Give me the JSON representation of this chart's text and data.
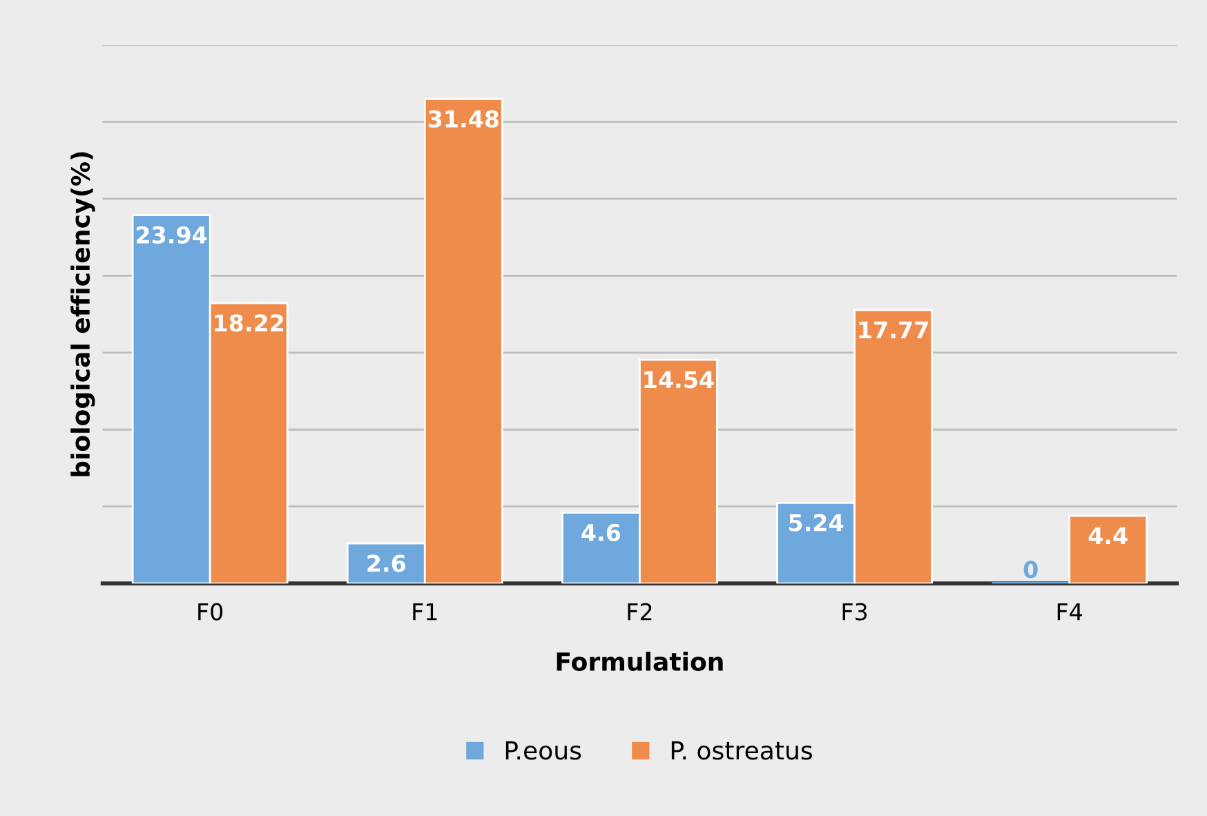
{
  "chart_data": {
    "type": "bar",
    "xlabel": "Formulation",
    "ylabel": "biological efficiency(%)",
    "categories": [
      "F0",
      "F1",
      "F2",
      "F3",
      "F4"
    ],
    "series": [
      {
        "name": "P.eous",
        "color": "#6fa8dc",
        "values": [
          23.94,
          2.6,
          4.6,
          5.24,
          0
        ]
      },
      {
        "name": "P. ostreatus",
        "color": "#ef8c4c",
        "values": [
          18.22,
          31.48,
          14.54,
          17.77,
          4.4
        ]
      }
    ],
    "ylim": [
      0,
      35
    ],
    "yticks": [
      {
        "value": 0,
        "label": null
      },
      {
        "value": 5,
        "label": null
      },
      {
        "value": 10,
        "label": null
      },
      {
        "value": 15,
        "label": null
      },
      {
        "value": 20,
        "label": null
      },
      {
        "value": 25,
        "label": null
      },
      {
        "value": 30,
        "label": null
      },
      {
        "value": 35,
        "label": null
      }
    ],
    "grid": "y",
    "legend": "bottom",
    "data_labels": true,
    "tick_labels": "x"
  }
}
